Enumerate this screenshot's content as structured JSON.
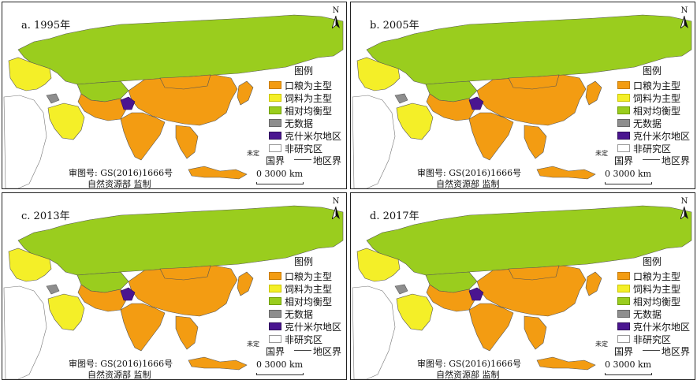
{
  "legend": {
    "title": "图例",
    "items": [
      {
        "label": "口粮为主型",
        "color": "#f39c12"
      },
      {
        "label": "饲料为主型",
        "color": "#f4ef28"
      },
      {
        "label": "相对均衡型",
        "color": "#9acd1e"
      },
      {
        "label": "无数据",
        "color": "#8e8e8e"
      },
      {
        "label": "克什米尔地区",
        "color": "#4a1590"
      },
      {
        "label": "非研究区",
        "color": "#ffffff"
      }
    ]
  },
  "north_label": "N",
  "boundaries": {
    "undefined_label": "未定",
    "international_label": "国界",
    "regional_label": "地区界"
  },
  "scale_text": "0  3000 km",
  "review_number": "审图号: GS(2016)1666号",
  "supervisor": "自然资源部 监制",
  "panels": [
    {
      "title": "a. 1995年"
    },
    {
      "title": "b. 2005年"
    },
    {
      "title": "c. 2013年"
    },
    {
      "title": "d. 2017年"
    }
  ]
}
